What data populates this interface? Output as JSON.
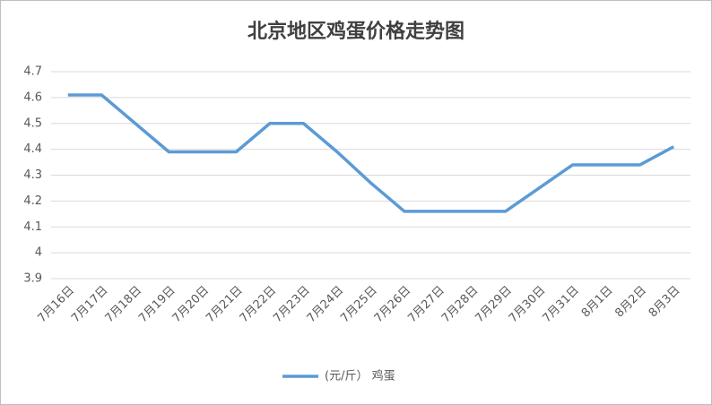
{
  "chart_data": {
    "type": "line",
    "title": "北京地区鸡蛋价格走势图",
    "categories": [
      "7月16日",
      "7月17日",
      "7月18日",
      "7月19日",
      "7月20日",
      "7月21日",
      "7月22日",
      "7月23日",
      "7月24日",
      "7月25日",
      "7月26日",
      "7月27日",
      "7月28日",
      "7月29日",
      "7月30日",
      "7月31日",
      "8月1日",
      "8月2日",
      "8月3日"
    ],
    "series": [
      {
        "name": "(元/斤） 鸡蛋",
        "color": "#5b9bd5",
        "values": [
          4.61,
          4.61,
          4.5,
          4.39,
          4.39,
          4.39,
          4.5,
          4.5,
          4.39,
          4.27,
          4.16,
          4.16,
          4.16,
          4.16,
          4.25,
          4.34,
          4.34,
          4.34,
          4.41
        ]
      }
    ],
    "ylim": [
      3.9,
      4.7
    ],
    "yticks": [
      3.9,
      4,
      4.1,
      4.2,
      4.3,
      4.4,
      4.5,
      4.6,
      4.7
    ],
    "grid": true,
    "legend": "bottom"
  }
}
